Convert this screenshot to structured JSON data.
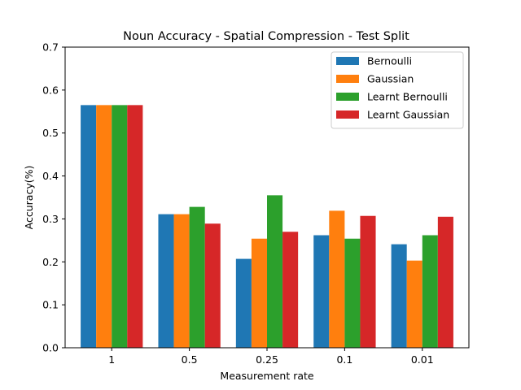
{
  "chart_data": {
    "type": "bar",
    "title": "Noun Accuracy - Spatial Compression - Test Split",
    "xlabel": "Measurement rate",
    "ylabel": "Accuracy(%)",
    "categories": [
      "1",
      "0.5",
      "0.25",
      "0.1",
      "0.01"
    ],
    "ylim": [
      0,
      0.7
    ],
    "yticks": [
      0.0,
      0.1,
      0.2,
      0.3,
      0.4,
      0.5,
      0.6,
      0.7
    ],
    "ytick_labels": [
      "0.0",
      "0.1",
      "0.2",
      "0.3",
      "0.4",
      "0.5",
      "0.6",
      "0.7"
    ],
    "grid": false,
    "legend_position": "top-right",
    "series": [
      {
        "name": "Bernoulli",
        "color": "#1f77b4",
        "values": [
          0.565,
          0.311,
          0.207,
          0.262,
          0.241
        ]
      },
      {
        "name": "Gaussian",
        "color": "#ff7f0e",
        "values": [
          0.565,
          0.311,
          0.254,
          0.319,
          0.203
        ]
      },
      {
        "name": "Learnt Bernoulli",
        "color": "#2ca02c",
        "values": [
          0.565,
          0.328,
          0.355,
          0.254,
          0.262
        ]
      },
      {
        "name": "Learnt Gaussian",
        "color": "#d62728",
        "values": [
          0.565,
          0.289,
          0.27,
          0.307,
          0.305
        ]
      }
    ]
  }
}
